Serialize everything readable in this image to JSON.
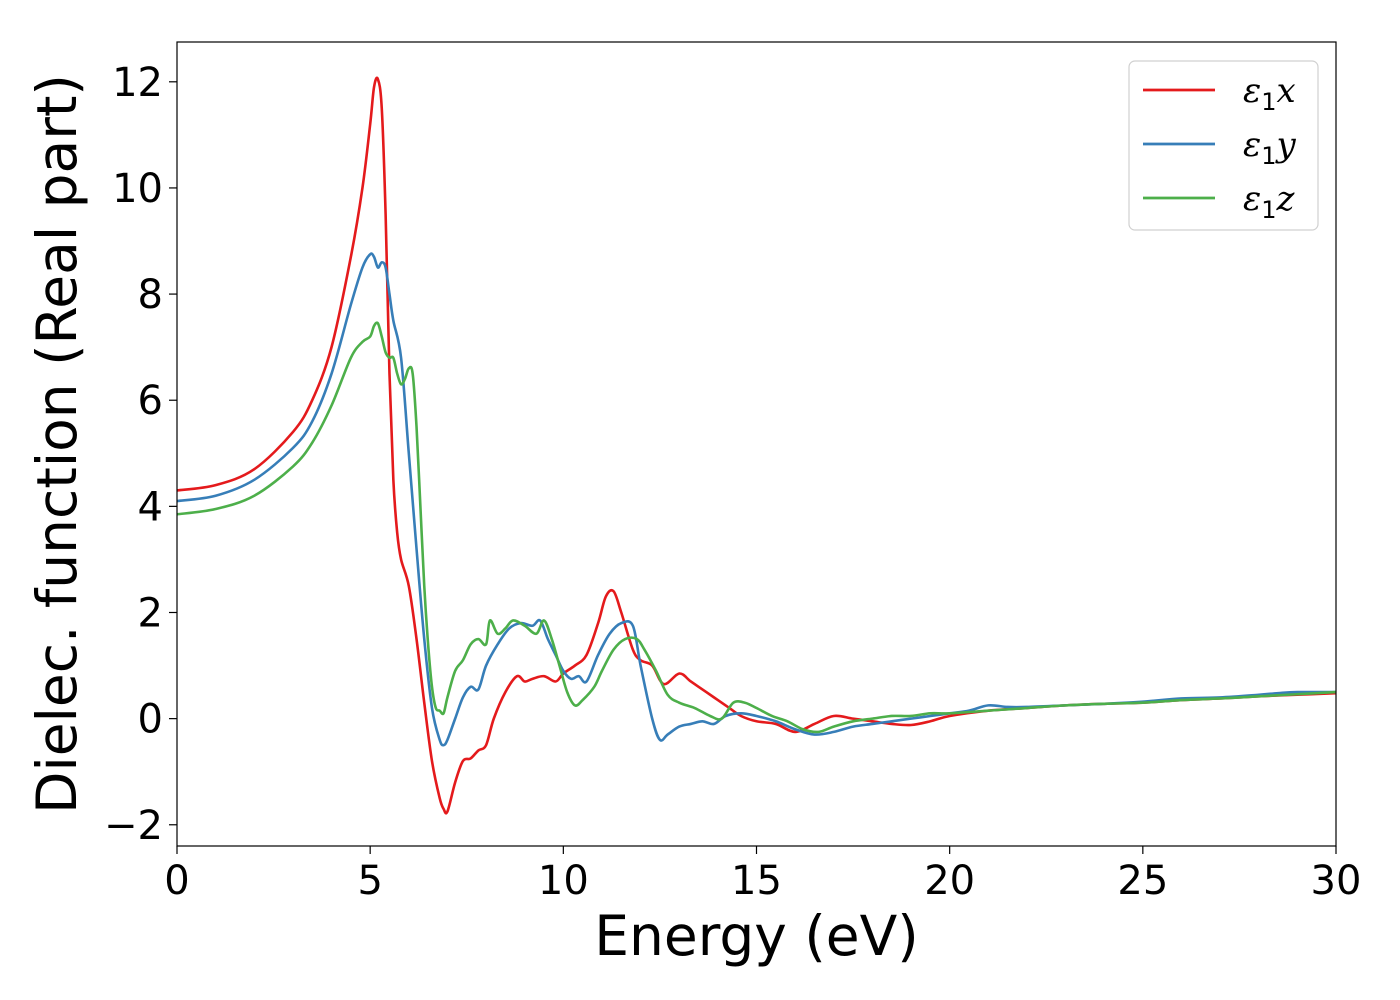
{
  "chart_data": {
    "type": "line",
    "title": "",
    "xlabel": "Energy (eV)",
    "ylabel": "Dielec. function (Real part)",
    "xlim": [
      0,
      30
    ],
    "ylim": [
      -2.4,
      12.75
    ],
    "xticks": [
      0,
      5,
      10,
      15,
      20,
      25,
      30
    ],
    "xtick_labels": [
      "0",
      "5",
      "10",
      "15",
      "20",
      "25",
      "30"
    ],
    "yticks": [
      -2,
      0,
      2,
      4,
      6,
      8,
      10,
      12
    ],
    "ytick_labels": [
      "−2",
      "0",
      "2",
      "4",
      "6",
      "8",
      "10",
      "12"
    ],
    "grid": false,
    "legend_position": "top-right",
    "series": [
      {
        "name": "ε₁x",
        "name_parts": {
          "base": "ε",
          "sub": "1",
          "suffix": "x"
        },
        "color": "#e41a1c",
        "x": [
          0,
          1,
          2,
          3,
          3.5,
          4,
          4.5,
          4.8,
          5.0,
          5.1,
          5.2,
          5.3,
          5.4,
          5.5,
          5.6,
          5.7,
          5.8,
          6.0,
          6.2,
          6.4,
          6.6,
          6.8,
          6.9,
          7.0,
          7.2,
          7.4,
          7.6,
          7.8,
          8.0,
          8.2,
          8.5,
          8.8,
          9.0,
          9.2,
          9.5,
          9.8,
          10.0,
          10.3,
          10.6,
          10.9,
          11.1,
          11.3,
          11.5,
          11.8,
          12.0,
          12.3,
          12.6,
          13.0,
          13.3,
          13.7,
          14.0,
          14.3,
          14.6,
          15.0,
          15.5,
          16.0,
          16.5,
          17.0,
          17.5,
          18.0,
          18.5,
          19.0,
          19.5,
          20.0,
          21.0,
          22.0,
          23.0,
          24.0,
          25.0,
          26.0,
          27.0,
          28.0,
          29.0,
          30.0
        ],
        "y": [
          4.3,
          4.4,
          4.7,
          5.4,
          6.0,
          7.0,
          8.7,
          10.0,
          11.2,
          11.9,
          12.05,
          11.5,
          9.5,
          6.5,
          4.5,
          3.5,
          3.0,
          2.5,
          1.5,
          0.3,
          -0.8,
          -1.5,
          -1.7,
          -1.75,
          -1.2,
          -0.8,
          -0.75,
          -0.6,
          -0.5,
          0.0,
          0.5,
          0.8,
          0.7,
          0.75,
          0.8,
          0.7,
          0.85,
          1.0,
          1.2,
          1.8,
          2.3,
          2.4,
          2.0,
          1.3,
          1.1,
          1.0,
          0.65,
          0.85,
          0.7,
          0.5,
          0.35,
          0.2,
          0.05,
          -0.05,
          -0.1,
          -0.25,
          -0.1,
          0.05,
          0.0,
          -0.05,
          -0.1,
          -0.12,
          -0.05,
          0.05,
          0.15,
          0.2,
          0.25,
          0.28,
          0.3,
          0.35,
          0.38,
          0.42,
          0.45,
          0.48
        ]
      },
      {
        "name": "ε₁y",
        "name_parts": {
          "base": "ε",
          "sub": "1",
          "suffix": "y"
        },
        "color": "#377eb8",
        "x": [
          0,
          1,
          2,
          3,
          3.5,
          4,
          4.5,
          4.8,
          5.0,
          5.1,
          5.2,
          5.3,
          5.4,
          5.5,
          5.6,
          5.8,
          6.0,
          6.2,
          6.4,
          6.6,
          6.8,
          6.9,
          7.0,
          7.2,
          7.4,
          7.6,
          7.8,
          8.0,
          8.3,
          8.6,
          8.9,
          9.2,
          9.4,
          9.6,
          9.8,
          10.0,
          10.2,
          10.4,
          10.6,
          10.9,
          11.2,
          11.5,
          11.8,
          12.0,
          12.3,
          12.5,
          12.7,
          13.0,
          13.3,
          13.6,
          13.9,
          14.2,
          14.6,
          15.0,
          15.5,
          16.0,
          16.5,
          17.0,
          17.5,
          18.0,
          18.5,
          19.0,
          19.5,
          20.0,
          20.5,
          21.0,
          21.5,
          22.0,
          23.0,
          24.0,
          25.0,
          26.0,
          27.0,
          28.0,
          28.5,
          29.0,
          30.0
        ],
        "y": [
          4.1,
          4.2,
          4.5,
          5.1,
          5.6,
          6.5,
          7.8,
          8.5,
          8.75,
          8.7,
          8.5,
          8.6,
          8.5,
          8.0,
          7.5,
          6.8,
          5.0,
          3.2,
          1.5,
          0.2,
          -0.4,
          -0.5,
          -0.4,
          0.0,
          0.4,
          0.6,
          0.55,
          1.0,
          1.4,
          1.7,
          1.8,
          1.75,
          1.85,
          1.5,
          1.2,
          0.9,
          0.75,
          0.8,
          0.7,
          1.2,
          1.6,
          1.8,
          1.75,
          1.0,
          0.0,
          -0.4,
          -0.3,
          -0.15,
          -0.1,
          -0.05,
          -0.1,
          0.05,
          0.1,
          0.05,
          -0.05,
          -0.2,
          -0.3,
          -0.25,
          -0.15,
          -0.1,
          -0.05,
          0.0,
          0.05,
          0.1,
          0.15,
          0.25,
          0.22,
          0.22,
          0.25,
          0.28,
          0.32,
          0.38,
          0.4,
          0.45,
          0.48,
          0.5,
          0.5
        ]
      },
      {
        "name": "ε₁z",
        "name_parts": {
          "base": "ε",
          "sub": "1",
          "suffix": "z"
        },
        "color": "#4daf4a",
        "x": [
          0,
          1,
          2,
          3,
          3.5,
          4,
          4.5,
          4.8,
          5.0,
          5.1,
          5.2,
          5.3,
          5.4,
          5.5,
          5.6,
          5.7,
          5.8,
          5.9,
          6.0,
          6.1,
          6.2,
          6.3,
          6.4,
          6.5,
          6.6,
          6.7,
          6.8,
          6.9,
          7.0,
          7.2,
          7.4,
          7.6,
          7.8,
          8.0,
          8.1,
          8.3,
          8.5,
          8.7,
          9.0,
          9.3,
          9.5,
          9.7,
          9.9,
          10.1,
          10.3,
          10.5,
          10.8,
          11.0,
          11.3,
          11.6,
          11.9,
          12.1,
          12.4,
          12.7,
          13.0,
          13.4,
          13.8,
          14.1,
          14.4,
          14.7,
          15.0,
          15.4,
          15.8,
          16.2,
          16.6,
          17.0,
          17.5,
          18.0,
          18.5,
          19.0,
          19.5,
          20.0,
          21.0,
          22.0,
          23.0,
          24.0,
          25.0,
          26.0,
          27.0,
          28.0,
          29.0,
          30.0
        ],
        "y": [
          3.85,
          3.95,
          4.2,
          4.75,
          5.2,
          5.9,
          6.8,
          7.1,
          7.2,
          7.4,
          7.45,
          7.2,
          6.9,
          6.8,
          6.8,
          6.5,
          6.3,
          6.4,
          6.6,
          6.5,
          5.5,
          4.0,
          2.5,
          1.4,
          0.6,
          0.2,
          0.15,
          0.1,
          0.4,
          0.9,
          1.1,
          1.4,
          1.5,
          1.4,
          1.85,
          1.6,
          1.7,
          1.85,
          1.75,
          1.6,
          1.85,
          1.5,
          1.0,
          0.5,
          0.25,
          0.35,
          0.6,
          0.9,
          1.3,
          1.5,
          1.5,
          1.3,
          0.9,
          0.45,
          0.3,
          0.2,
          0.05,
          0.0,
          0.3,
          0.3,
          0.2,
          0.05,
          -0.05,
          -0.2,
          -0.25,
          -0.15,
          -0.05,
          0.0,
          0.05,
          0.05,
          0.1,
          0.1,
          0.15,
          0.2,
          0.25,
          0.28,
          0.3,
          0.35,
          0.38,
          0.42,
          0.46,
          0.5
        ]
      }
    ]
  }
}
